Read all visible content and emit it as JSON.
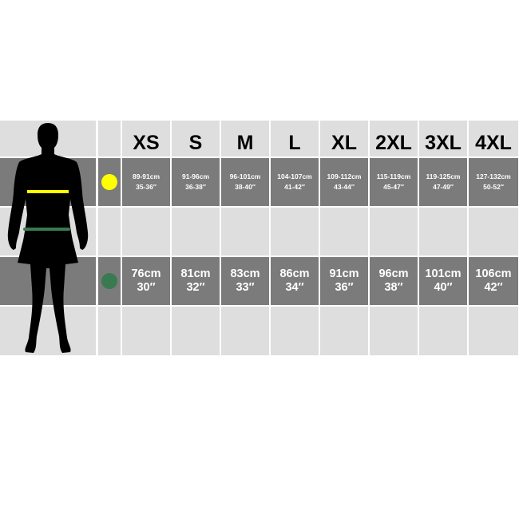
{
  "sizes": [
    "XS",
    "S",
    "M",
    "L",
    "XL",
    "2XL",
    "3XL",
    "4XL"
  ],
  "rows": {
    "chest": {
      "marker_color": "#ffff00",
      "cm": [
        "89-91cm",
        "91-96cm",
        "96-101cm",
        "104-107cm",
        "109-112cm",
        "115-119cm",
        "119-125cm",
        "127-132cm"
      ],
      "inches": [
        "35-36″",
        "36-38″",
        "38-40″",
        "41-42″",
        "43-44″",
        "45-47″",
        "47-49″",
        "50-52″"
      ]
    },
    "waist": {
      "marker_color": "#3a7a50",
      "cm": [
        "76cm",
        "81cm",
        "83cm",
        "86cm",
        "91cm",
        "96cm",
        "101cm",
        "106cm"
      ],
      "inches": [
        "30″",
        "32″",
        "33″",
        "34″",
        "36″",
        "38″",
        "40″",
        "42″"
      ]
    }
  },
  "colors": {
    "light_row": "#dedede",
    "dark_row": "#7b7b7b"
  }
}
